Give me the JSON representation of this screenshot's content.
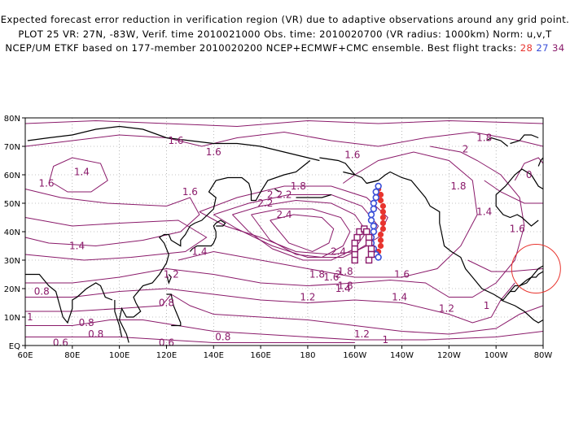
{
  "header": {
    "line1": "Expected forecast error reduction in verification region (VR) due to adaptive observations around any grid point.",
    "line2": "PLOT 25 VR: 27N, -83W, Verif. time 2010021000 Obs. time: 2010020700 (VR radius: 1000km) Norm: u,v,T",
    "line3": "NCEP/UM ETKF based on 177-member 2010020200 NCEP+ECMWF+CMC ensemble. Best flight tracks:",
    "track_a": "28",
    "track_b": "27",
    "track_c": "34"
  },
  "map": {
    "lat_labels": [
      "80N",
      "70N",
      "60N",
      "50N",
      "40N",
      "30N",
      "20N",
      "10N",
      "EQ"
    ],
    "lon_labels": [
      "60E",
      "80E",
      "100E",
      "120E",
      "140E",
      "160E",
      "180",
      "160W",
      "140W",
      "120W",
      "100W",
      "80W"
    ],
    "contour_labels": [
      {
        "text": "1.6",
        "lon": 124,
        "lat": 72
      },
      {
        "text": "1.6",
        "lon": 140,
        "lat": 68
      },
      {
        "text": "1.6",
        "lon": 199,
        "lat": 67
      },
      {
        "text": "1.8",
        "lon": 255,
        "lat": 73
      },
      {
        "text": "2",
        "lon": 247,
        "lat": 69
      },
      {
        "text": "1.4",
        "lon": 84,
        "lat": 61
      },
      {
        "text": "1.6",
        "lon": 69,
        "lat": 57
      },
      {
        "text": "1.6",
        "lon": 130,
        "lat": 54
      },
      {
        "text": "1.8",
        "lon": 176,
        "lat": 56
      },
      {
        "text": "2",
        "lon": 164,
        "lat": 53
      },
      {
        "text": "2.2",
        "lon": 170,
        "lat": 53
      },
      {
        "text": "2.2",
        "lon": 162,
        "lat": 50
      },
      {
        "text": "2.4",
        "lon": 170,
        "lat": 46
      },
      {
        "text": "1.4",
        "lon": 82,
        "lat": 35
      },
      {
        "text": "1.4",
        "lon": 134,
        "lat": 33
      },
      {
        "text": "1.2",
        "lon": 122,
        "lat": 25
      },
      {
        "text": "2.4",
        "lon": 193,
        "lat": 33
      },
      {
        "text": "1.8",
        "lon": 184,
        "lat": 25
      },
      {
        "text": "1.6",
        "lon": 190,
        "lat": 24
      },
      {
        "text": "2",
        "lon": 193,
        "lat": 25
      },
      {
        "text": "1.4",
        "lon": 195,
        "lat": 20
      },
      {
        "text": "1.2",
        "lon": 180,
        "lat": 17
      },
      {
        "text": "1.8",
        "lon": 196,
        "lat": 21
      },
      {
        "text": "1.6",
        "lon": 220,
        "lat": 25
      },
      {
        "text": "1.4",
        "lon": 219,
        "lat": 17
      },
      {
        "text": "1.2",
        "lon": 239,
        "lat": 13
      },
      {
        "text": "1.8",
        "lon": 244,
        "lat": 56
      },
      {
        "text": "1.4",
        "lon": 255,
        "lat": 47
      },
      {
        "text": "1.6",
        "lon": 269,
        "lat": 41
      },
      {
        "text": "0.8",
        "lon": 67,
        "lat": 19
      },
      {
        "text": "0.8",
        "lon": 120,
        "lat": 15
      },
      {
        "text": "0.8",
        "lon": 86,
        "lat": 8
      },
      {
        "text": "0.8",
        "lon": 90,
        "lat": 4
      },
      {
        "text": "0.8",
        "lon": 144,
        "lat": 3
      },
      {
        "text": "0.6",
        "lon": 75,
        "lat": 1
      },
      {
        "text": "0.6",
        "lon": 120,
        "lat": 1
      },
      {
        "text": "1",
        "lon": 62,
        "lat": 10
      },
      {
        "text": "1.2",
        "lon": 203,
        "lat": 4
      },
      {
        "text": "1",
        "lon": 213,
        "lat": 2
      },
      {
        "text": "1",
        "lon": 256,
        "lat": 14
      },
      {
        "text": "0",
        "lon": 274,
        "lat": 60
      },
      {
        "text": "1.8",
        "lon": 196,
        "lat": 26
      }
    ]
  },
  "colors": {
    "contour": "#8a1a6a",
    "track_red": "#e8342e",
    "track_blue": "#3a4fd8",
    "track_purple": "#8a1a6a",
    "vr_circle": "#e8342e",
    "grid": "#888888",
    "land": "#000000"
  }
}
